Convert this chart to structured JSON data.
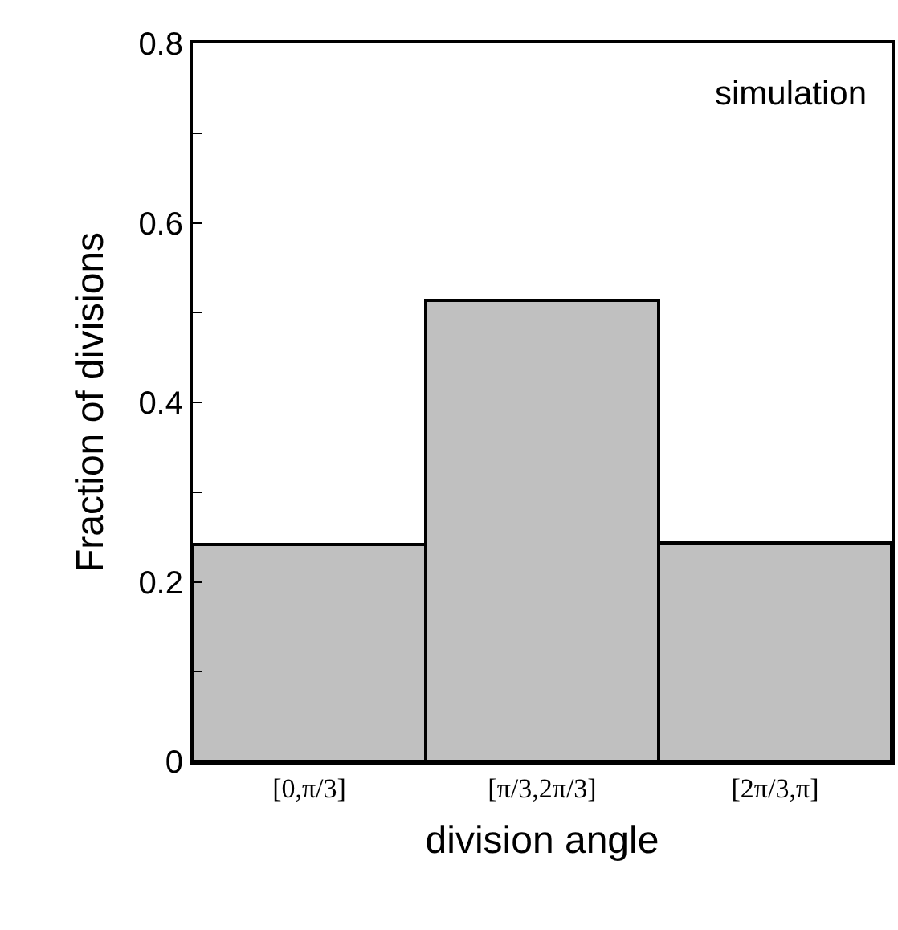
{
  "chart_data": {
    "type": "bar",
    "xlabel": "division angle",
    "ylabel": "Fraction of divisions",
    "categories": [
      "[0,π/3]",
      "[π/3,2π/3]",
      "[2π/3,π]"
    ],
    "series": [
      {
        "color": "#c0c0c0",
        "values": [
          0.241,
          0.514,
          0.243
        ]
      }
    ],
    "ylim": [
      0,
      0.8
    ],
    "yticks": [
      0,
      {
        "value": 0.1,
        "label": null
      },
      0.2,
      {
        "value": 0.3,
        "label": null
      },
      0.4,
      {
        "value": 0.5,
        "label": null
      },
      0.6,
      {
        "value": 0.7,
        "label": null
      },
      0.8
    ],
    "annotations": [
      "simulation"
    ]
  }
}
